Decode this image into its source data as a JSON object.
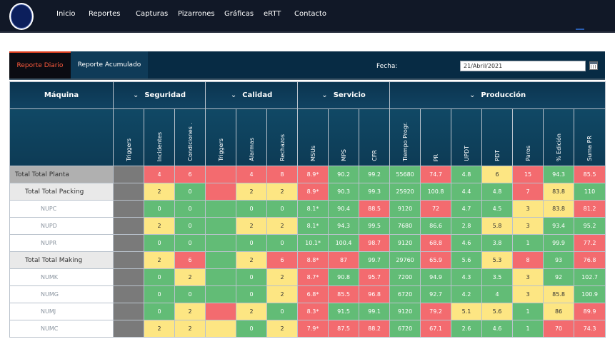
{
  "nav": {
    "items": [
      "Inicio",
      "Reportes",
      "Capturas",
      "Pizarrones",
      "Gráficas",
      "eRTT",
      "Contacto"
    ]
  },
  "tabs": {
    "active": "Reporte Diario",
    "inactive": "Reporte Acumulado"
  },
  "fecha": {
    "label": "Fecha:",
    "value": "21/Abril/2021"
  },
  "table": {
    "machine_header": "Máquina",
    "groups": [
      {
        "label": "Seguridad",
        "span": 3
      },
      {
        "label": "Calidad",
        "span": 3
      },
      {
        "label": "Servicio",
        "span": 3
      },
      {
        "label": "Producción",
        "span": 7
      }
    ],
    "subheaders": [
      "Triggers",
      "Incidentes",
      "Condiciones .",
      "Triggers",
      "Alarmas",
      "Rechazos",
      "MSUs",
      "MPS",
      "CFR",
      "Tiempo Progr.",
      "PR",
      "UPDT",
      "PDT",
      "Paros",
      "% Edición",
      "Suma PR"
    ],
    "rows": [
      {
        "name": "Total Total Planta",
        "level": "planta",
        "cells": [
          {
            "v": "",
            "c": "x"
          },
          {
            "v": "4",
            "c": "r"
          },
          {
            "v": "6",
            "c": "r"
          },
          {
            "v": "",
            "c": "r"
          },
          {
            "v": "4",
            "c": "r"
          },
          {
            "v": "8",
            "c": "r"
          },
          {
            "v": "8.9*",
            "c": "r"
          },
          {
            "v": "90.2",
            "c": "g"
          },
          {
            "v": "99.2",
            "c": "g"
          },
          {
            "v": "55680",
            "c": "g"
          },
          {
            "v": "74.7",
            "c": "r"
          },
          {
            "v": "4.8",
            "c": "g"
          },
          {
            "v": "6",
            "c": "y"
          },
          {
            "v": "15",
            "c": "r"
          },
          {
            "v": "94.3",
            "c": "g"
          },
          {
            "v": "85.5",
            "c": "r"
          }
        ]
      },
      {
        "name": "Total Total Packing",
        "level": "total",
        "cells": [
          {
            "v": "",
            "c": "x"
          },
          {
            "v": "2",
            "c": "y"
          },
          {
            "v": "0",
            "c": "g"
          },
          {
            "v": "",
            "c": "r"
          },
          {
            "v": "2",
            "c": "y"
          },
          {
            "v": "2",
            "c": "y"
          },
          {
            "v": "8.9*",
            "c": "r"
          },
          {
            "v": "90.3",
            "c": "g"
          },
          {
            "v": "99.3",
            "c": "g"
          },
          {
            "v": "25920",
            "c": "g"
          },
          {
            "v": "100.8",
            "c": "g"
          },
          {
            "v": "4.4",
            "c": "g"
          },
          {
            "v": "4.8",
            "c": "g"
          },
          {
            "v": "7",
            "c": "r"
          },
          {
            "v": "83.8",
            "c": "y"
          },
          {
            "v": "110",
            "c": "g"
          }
        ]
      },
      {
        "name": "NUPC",
        "level": "line",
        "cells": [
          {
            "v": "",
            "c": "x"
          },
          {
            "v": "0",
            "c": "g"
          },
          {
            "v": "0",
            "c": "g"
          },
          {
            "v": "",
            "c": "g"
          },
          {
            "v": "0",
            "c": "g"
          },
          {
            "v": "0",
            "c": "g"
          },
          {
            "v": "8.1*",
            "c": "g"
          },
          {
            "v": "90.4",
            "c": "g"
          },
          {
            "v": "88.5",
            "c": "r"
          },
          {
            "v": "9120",
            "c": "g"
          },
          {
            "v": "72",
            "c": "r"
          },
          {
            "v": "4.7",
            "c": "g"
          },
          {
            "v": "4.5",
            "c": "g"
          },
          {
            "v": "3",
            "c": "y"
          },
          {
            "v": "83.8",
            "c": "y"
          },
          {
            "v": "81.2",
            "c": "r"
          }
        ]
      },
      {
        "name": "NUPD",
        "level": "line",
        "cells": [
          {
            "v": "",
            "c": "x"
          },
          {
            "v": "2",
            "c": "y"
          },
          {
            "v": "0",
            "c": "g"
          },
          {
            "v": "",
            "c": "g"
          },
          {
            "v": "2",
            "c": "y"
          },
          {
            "v": "2",
            "c": "y"
          },
          {
            "v": "8.1*",
            "c": "g"
          },
          {
            "v": "94.3",
            "c": "g"
          },
          {
            "v": "99.5",
            "c": "g"
          },
          {
            "v": "7680",
            "c": "g"
          },
          {
            "v": "86.6",
            "c": "g"
          },
          {
            "v": "2.8",
            "c": "g"
          },
          {
            "v": "5.8",
            "c": "y"
          },
          {
            "v": "3",
            "c": "y"
          },
          {
            "v": "93.4",
            "c": "g"
          },
          {
            "v": "95.2",
            "c": "g"
          }
        ]
      },
      {
        "name": "NUPR",
        "level": "line",
        "cells": [
          {
            "v": "",
            "c": "x"
          },
          {
            "v": "0",
            "c": "g"
          },
          {
            "v": "0",
            "c": "g"
          },
          {
            "v": "",
            "c": "g"
          },
          {
            "v": "0",
            "c": "g"
          },
          {
            "v": "0",
            "c": "g"
          },
          {
            "v": "10.1*",
            "c": "g"
          },
          {
            "v": "100.4",
            "c": "g"
          },
          {
            "v": "98.7",
            "c": "r"
          },
          {
            "v": "9120",
            "c": "g"
          },
          {
            "v": "68.8",
            "c": "r"
          },
          {
            "v": "4.6",
            "c": "g"
          },
          {
            "v": "3.8",
            "c": "g"
          },
          {
            "v": "1",
            "c": "g"
          },
          {
            "v": "99.9",
            "c": "g"
          },
          {
            "v": "77.2",
            "c": "r"
          }
        ]
      },
      {
        "name": "Total Total Making",
        "level": "total",
        "cells": [
          {
            "v": "",
            "c": "x"
          },
          {
            "v": "2",
            "c": "y"
          },
          {
            "v": "6",
            "c": "r"
          },
          {
            "v": "",
            "c": "g"
          },
          {
            "v": "2",
            "c": "y"
          },
          {
            "v": "6",
            "c": "r"
          },
          {
            "v": "8.8*",
            "c": "r"
          },
          {
            "v": "87",
            "c": "r"
          },
          {
            "v": "99.7",
            "c": "g"
          },
          {
            "v": "29760",
            "c": "g"
          },
          {
            "v": "65.9",
            "c": "r"
          },
          {
            "v": "5.6",
            "c": "g"
          },
          {
            "v": "5.3",
            "c": "y"
          },
          {
            "v": "8",
            "c": "r"
          },
          {
            "v": "93",
            "c": "g"
          },
          {
            "v": "76.8",
            "c": "r"
          }
        ]
      },
      {
        "name": "NUMK",
        "level": "line",
        "cells": [
          {
            "v": "",
            "c": "x"
          },
          {
            "v": "0",
            "c": "g"
          },
          {
            "v": "2",
            "c": "y"
          },
          {
            "v": "",
            "c": "g"
          },
          {
            "v": "0",
            "c": "g"
          },
          {
            "v": "2",
            "c": "y"
          },
          {
            "v": "8.7*",
            "c": "r"
          },
          {
            "v": "90.8",
            "c": "g"
          },
          {
            "v": "95.7",
            "c": "r"
          },
          {
            "v": "7200",
            "c": "g"
          },
          {
            "v": "94.9",
            "c": "g"
          },
          {
            "v": "4.3",
            "c": "g"
          },
          {
            "v": "3.5",
            "c": "g"
          },
          {
            "v": "3",
            "c": "y"
          },
          {
            "v": "92",
            "c": "g"
          },
          {
            "v": "102.7",
            "c": "g"
          }
        ]
      },
      {
        "name": "NUMG",
        "level": "line",
        "cells": [
          {
            "v": "",
            "c": "x"
          },
          {
            "v": "0",
            "c": "g"
          },
          {
            "v": "0",
            "c": "g"
          },
          {
            "v": "",
            "c": "g"
          },
          {
            "v": "0",
            "c": "g"
          },
          {
            "v": "2",
            "c": "y"
          },
          {
            "v": "6.8*",
            "c": "r"
          },
          {
            "v": "85.5",
            "c": "r"
          },
          {
            "v": "96.8",
            "c": "r"
          },
          {
            "v": "6720",
            "c": "g"
          },
          {
            "v": "92.7",
            "c": "g"
          },
          {
            "v": "4.2",
            "c": "g"
          },
          {
            "v": "4",
            "c": "g"
          },
          {
            "v": "3",
            "c": "y"
          },
          {
            "v": "85.8",
            "c": "y"
          },
          {
            "v": "100.9",
            "c": "g"
          }
        ]
      },
      {
        "name": "NUMJ",
        "level": "line",
        "cells": [
          {
            "v": "",
            "c": "x"
          },
          {
            "v": "0",
            "c": "g"
          },
          {
            "v": "2",
            "c": "y"
          },
          {
            "v": "",
            "c": "r"
          },
          {
            "v": "2",
            "c": "y"
          },
          {
            "v": "0",
            "c": "g"
          },
          {
            "v": "8.3*",
            "c": "r"
          },
          {
            "v": "91.5",
            "c": "g"
          },
          {
            "v": "99.1",
            "c": "g"
          },
          {
            "v": "9120",
            "c": "g"
          },
          {
            "v": "79.2",
            "c": "r"
          },
          {
            "v": "5.1",
            "c": "y"
          },
          {
            "v": "5.6",
            "c": "y"
          },
          {
            "v": "1",
            "c": "g"
          },
          {
            "v": "86",
            "c": "y"
          },
          {
            "v": "89.9",
            "c": "r"
          }
        ]
      },
      {
        "name": "NUMC",
        "level": "line",
        "cells": [
          {
            "v": "",
            "c": "x"
          },
          {
            "v": "2",
            "c": "y"
          },
          {
            "v": "2",
            "c": "y"
          },
          {
            "v": "",
            "c": "y"
          },
          {
            "v": "0",
            "c": "g"
          },
          {
            "v": "2",
            "c": "y"
          },
          {
            "v": "7.9*",
            "c": "r"
          },
          {
            "v": "87.5",
            "c": "r"
          },
          {
            "v": "88.2",
            "c": "r"
          },
          {
            "v": "6720",
            "c": "g"
          },
          {
            "v": "67.1",
            "c": "r"
          },
          {
            "v": "2.6",
            "c": "g"
          },
          {
            "v": "4.6",
            "c": "g"
          },
          {
            "v": "1",
            "c": "g"
          },
          {
            "v": "70",
            "c": "r"
          },
          {
            "v": "74.3",
            "c": "r"
          }
        ]
      }
    ]
  }
}
